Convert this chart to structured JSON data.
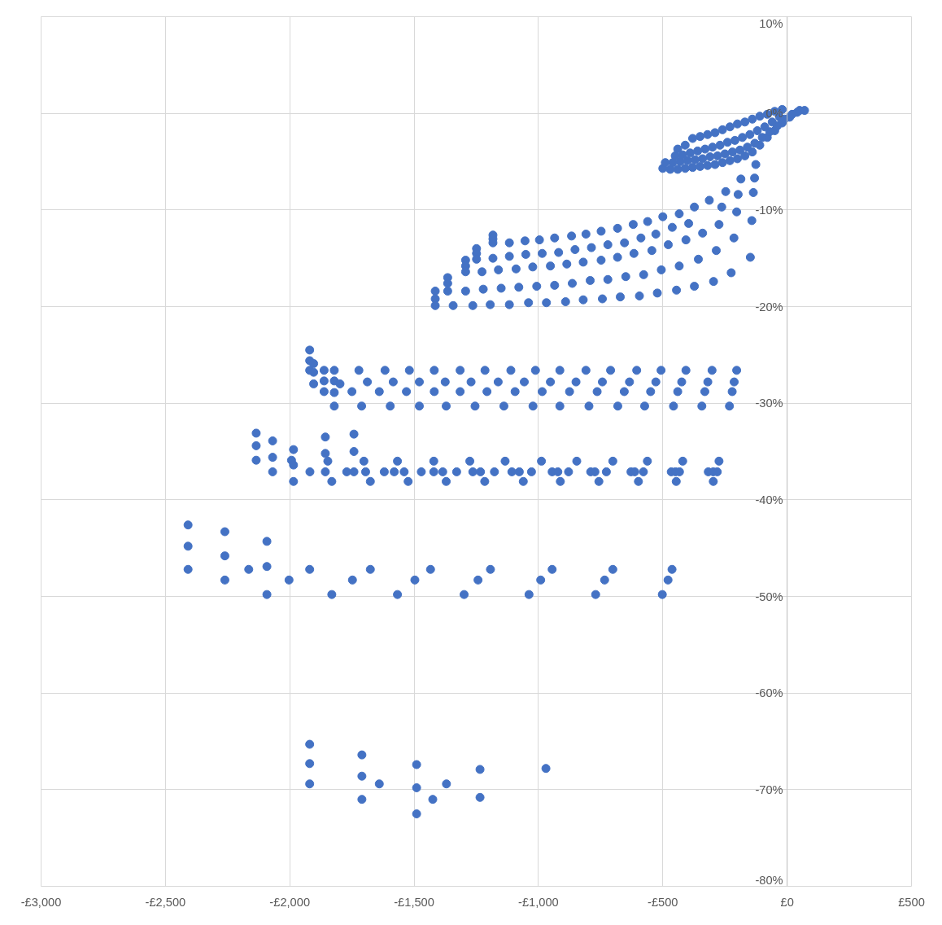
{
  "chart_data": {
    "type": "scatter",
    "color": "#4472c4",
    "marker": "circle",
    "grid": true,
    "xlim": [
      -3000,
      500
    ],
    "ylim": [
      -80,
      10
    ],
    "xticks": [
      {
        "value": -3000,
        "label": "-£3,000"
      },
      {
        "value": -2500,
        "label": "-£2,500"
      },
      {
        "value": -2000,
        "label": "-£2,000"
      },
      {
        "value": -1500,
        "label": "-£1,500"
      },
      {
        "value": -1000,
        "label": "-£1,000"
      },
      {
        "value": -500,
        "label": "-£500"
      },
      {
        "value": 0,
        "label": "£0"
      },
      {
        "value": 500,
        "label": "£500"
      }
    ],
    "yticks": [
      {
        "value": 10,
        "label": "10%"
      },
      {
        "value": 0,
        "label": "0%"
      },
      {
        "value": -10,
        "label": "-10%"
      },
      {
        "value": -20,
        "label": "-20%"
      },
      {
        "value": -30,
        "label": "-30%"
      },
      {
        "value": -40,
        "label": "-40%"
      },
      {
        "value": -50,
        "label": "-50%"
      },
      {
        "value": -60,
        "label": "-60%"
      },
      {
        "value": -70,
        "label": "-70%"
      },
      {
        "value": -80,
        "label": "-80%"
      }
    ],
    "x": [
      -500,
      -470,
      -440,
      -410,
      -380,
      -350,
      -320,
      -290,
      -260,
      -230,
      -200,
      -170,
      -140,
      -110,
      -80,
      -50,
      -20,
      10,
      40,
      70,
      -490,
      -460,
      -430,
      -400,
      -370,
      -340,
      -310,
      -280,
      -250,
      -220,
      -190,
      -160,
      -130,
      -100,
      -70,
      -40,
      -10,
      20,
      50,
      -450,
      -420,
      -390,
      -360,
      -330,
      -300,
      -270,
      -240,
      -210,
      -180,
      -150,
      -120,
      -90,
      -60,
      -30,
      -440,
      -410,
      -380,
      -350,
      -320,
      -290,
      -260,
      -230,
      -200,
      -170,
      -140,
      -110,
      -80,
      -50,
      -20,
      -126,
      -186,
      -131,
      -247,
      -197,
      -136,
      -313,
      -373,
      -263,
      -203,
      -142,
      -434,
      -500,
      -561,
      -619,
      -396,
      -274,
      -462,
      -1415,
      -1415,
      -1415,
      -1365,
      -1365,
      -1365,
      -1293,
      -1293,
      -1293,
      -1249,
      -1249,
      -1249,
      -1183,
      -1183,
      -1183,
      -1343,
      -1264,
      -1194,
      -1117,
      -1040,
      -968,
      -891,
      -820,
      -743,
      -671,
      -594,
      -522,
      -445,
      -373,
      -296,
      -225,
      -148,
      -1293,
      -1222,
      -1150,
      -1079,
      -1007,
      -935,
      -864,
      -792,
      -721,
      -649,
      -577,
      -506,
      -434,
      -357,
      -285,
      -214,
      -1227,
      -1161,
      -1090,
      -1023,
      -952,
      -886,
      -820,
      -748,
      -682,
      -616,
      -544,
      -478,
      -407,
      -340,
      -1183,
      -1117,
      -1051,
      -985,
      -919,
      -853,
      -787,
      -721,
      -654,
      -588,
      -528,
      -1117,
      -1054,
      -996,
      -935,
      -867,
      -809,
      -748,
      -682,
      -1920,
      -1920,
      -1904,
      -1920,
      -1904,
      -1904,
      -1862,
      -1862,
      -1862,
      -1821,
      -1821,
      -1798,
      -1821,
      -1821,
      -1722,
      -1617,
      -1519,
      -1419,
      -1315,
      -1215,
      -1111,
      -1012,
      -914,
      -809,
      -710,
      -605,
      -507,
      -407,
      -302,
      -203,
      -1688,
      -1584,
      -1479,
      -1375,
      -1271,
      -1162,
      -1057,
      -952,
      -849,
      -743,
      -634,
      -528,
      -424,
      -319,
      -213,
      -1750,
      -1640,
      -1531,
      -1419,
      -1315,
      -1207,
      -1094,
      -985,
      -875,
      -764,
      -655,
      -549,
      -440,
      -331,
      -221,
      -1711,
      -1596,
      -1479,
      -1371,
      -1255,
      -1139,
      -1022,
      -914,
      -797,
      -681,
      -573,
      -457,
      -343,
      -232,
      -2135,
      -2135,
      -2135,
      -2069,
      -2069,
      -2069,
      -1985,
      -1993,
      -1985,
      -1985,
      -1919,
      -1857,
      -1857,
      -1847,
      -1857,
      -1831,
      -1771,
      -1742,
      -1742,
      -1742,
      -1702,
      -1695,
      -1676,
      -1620,
      -1580,
      -1567,
      -1540,
      -1524,
      -1471,
      -1421,
      -1421,
      -1385,
      -1371,
      -1329,
      -1276,
      -1264,
      -1233,
      -1216,
      -1177,
      -1134,
      -1107,
      -1077,
      -1061,
      -1028,
      -988,
      -945,
      -922,
      -912,
      -879,
      -846,
      -790,
      -773,
      -757,
      -727,
      -701,
      -628,
      -613,
      -598,
      -578,
      -562,
      -466,
      -449,
      -446,
      -433,
      -420,
      -317,
      -297,
      -281,
      -297,
      -274,
      -2409,
      -2409,
      -2409,
      -2261,
      -2261,
      -2261,
      -2165,
      -2092,
      -2092,
      -2092,
      -2003,
      -1920,
      -1831,
      -1748,
      -1676,
      -1567,
      -1497,
      -1434,
      -1299,
      -1243,
      -1193,
      -1038,
      -991,
      -945,
      -770,
      -734,
      -701,
      -502,
      -479,
      -463,
      -1920,
      -1920,
      -1920,
      -1710,
      -1710,
      -1710,
      -1640,
      -1490,
      -1490,
      -1490,
      -1425,
      -1370,
      -1235,
      -1235,
      -970
    ],
    "values": [
      -5.7,
      -5.8,
      -5.8,
      -5.7,
      -5.6,
      -5.5,
      -5.4,
      -5.3,
      -5.1,
      -4.9,
      -4.7,
      -4.4,
      -4.0,
      -3.3,
      -2.5,
      -1.8,
      -1.0,
      -0.4,
      0.1,
      0.3,
      -5.1,
      -5.1,
      -5.0,
      -4.9,
      -4.8,
      -4.7,
      -4.5,
      -4.4,
      -4.2,
      -4.0,
      -3.8,
      -3.5,
      -3.1,
      -2.5,
      -1.9,
      -1.3,
      -0.6,
      -0.1,
      0.3,
      -4.4,
      -4.3,
      -4.1,
      -3.9,
      -3.7,
      -3.5,
      -3.3,
      -3.0,
      -2.8,
      -2.5,
      -2.2,
      -1.8,
      -1.4,
      -0.9,
      -0.4,
      -3.7,
      -3.3,
      -2.6,
      -2.4,
      -2.2,
      -2.0,
      -1.7,
      -1.4,
      -1.1,
      -0.9,
      -0.6,
      -0.3,
      -0.1,
      0.2,
      0.4,
      -5.3,
      -6.8,
      -6.7,
      -8.1,
      -8.4,
      -8.2,
      -9.0,
      -9.7,
      -9.7,
      -10.2,
      -11.1,
      -10.4,
      -10.7,
      -11.2,
      -11.5,
      -11.4,
      -11.5,
      -11.8,
      -18.4,
      -19.2,
      -19.9,
      -17.0,
      -17.6,
      -18.4,
      -15.2,
      -15.8,
      -16.4,
      -14.0,
      -14.5,
      -15.1,
      -12.6,
      -13.0,
      -13.4,
      -19.9,
      -19.9,
      -19.8,
      -19.8,
      -19.6,
      -19.6,
      -19.5,
      -19.3,
      -19.2,
      -19.0,
      -18.9,
      -18.6,
      -18.3,
      -17.9,
      -17.4,
      -16.5,
      -14.9,
      -18.4,
      -18.2,
      -18.1,
      -18.0,
      -17.9,
      -17.8,
      -17.6,
      -17.3,
      -17.2,
      -16.9,
      -16.7,
      -16.2,
      -15.8,
      -15.1,
      -14.2,
      -12.9,
      -16.4,
      -16.2,
      -16.1,
      -15.9,
      -15.8,
      -15.6,
      -15.4,
      -15.2,
      -14.9,
      -14.5,
      -14.2,
      -13.6,
      -13.1,
      -12.4,
      -15.0,
      -14.8,
      -14.6,
      -14.5,
      -14.4,
      -14.1,
      -13.9,
      -13.6,
      -13.4,
      -12.9,
      -12.5,
      -13.4,
      -13.2,
      -13.1,
      -12.9,
      -12.7,
      -12.5,
      -12.2,
      -11.9,
      -24.5,
      -25.6,
      -25.9,
      -26.6,
      -26.8,
      -28.0,
      -26.6,
      -27.7,
      -28.8,
      -26.6,
      -27.7,
      -28.0,
      -28.9,
      -30.3,
      -26.6,
      -26.6,
      -26.6,
      -26.6,
      -26.6,
      -26.6,
      -26.6,
      -26.6,
      -26.6,
      -26.6,
      -26.6,
      -26.6,
      -26.6,
      -26.6,
      -26.6,
      -26.6,
      -27.8,
      -27.8,
      -27.8,
      -27.8,
      -27.8,
      -27.8,
      -27.8,
      -27.8,
      -27.8,
      -27.8,
      -27.8,
      -27.8,
      -27.8,
      -27.8,
      -27.8,
      -28.8,
      -28.8,
      -28.8,
      -28.8,
      -28.8,
      -28.8,
      -28.8,
      -28.8,
      -28.8,
      -28.8,
      -28.8,
      -28.8,
      -28.8,
      -28.8,
      -28.8,
      -30.3,
      -30.3,
      -30.3,
      -30.3,
      -30.3,
      -30.3,
      -30.3,
      -30.3,
      -30.3,
      -30.3,
      -30.3,
      -30.3,
      -30.3,
      -30.3,
      -33.1,
      -34.4,
      -35.9,
      -33.9,
      -35.6,
      -37.1,
      -34.8,
      -35.9,
      -36.4,
      -38.1,
      -37.1,
      -33.5,
      -35.2,
      -36.0,
      -37.1,
      -38.1,
      -37.1,
      -33.2,
      -35.0,
      -37.1,
      -36.0,
      -37.1,
      -38.1,
      -37.1,
      -37.1,
      -36.0,
      -37.1,
      -38.1,
      -37.1,
      -36.0,
      -37.1,
      -37.1,
      -38.1,
      -37.1,
      -36.0,
      -37.1,
      -37.1,
      -38.1,
      -37.1,
      -36.0,
      -37.1,
      -37.1,
      -38.1,
      -37.1,
      -36.0,
      -37.1,
      -37.1,
      -38.1,
      -37.1,
      -36.0,
      -37.1,
      -37.1,
      -38.1,
      -37.1,
      -36.0,
      -37.1,
      -37.1,
      -38.1,
      -37.1,
      -36.0,
      -37.1,
      -37.1,
      -38.1,
      -37.1,
      -36.0,
      -37.1,
      -37.1,
      -37.1,
      -38.1,
      -36.0,
      -42.6,
      -44.8,
      -47.2,
      -43.3,
      -45.8,
      -48.3,
      -47.2,
      -44.3,
      -46.9,
      -49.8,
      -48.3,
      -47.2,
      -49.8,
      -48.3,
      -47.2,
      -49.8,
      -48.3,
      -47.2,
      -49.8,
      -48.3,
      -47.2,
      -49.8,
      -48.3,
      -47.2,
      -49.8,
      -48.3,
      -47.2,
      -49.8,
      -48.3,
      -47.2,
      -65.3,
      -67.3,
      -69.4,
      -66.4,
      -68.6,
      -71.0,
      -69.4,
      -67.4,
      -69.8,
      -72.5,
      -71.0,
      -69.4,
      -67.9,
      -70.8,
      -67.8
    ]
  }
}
